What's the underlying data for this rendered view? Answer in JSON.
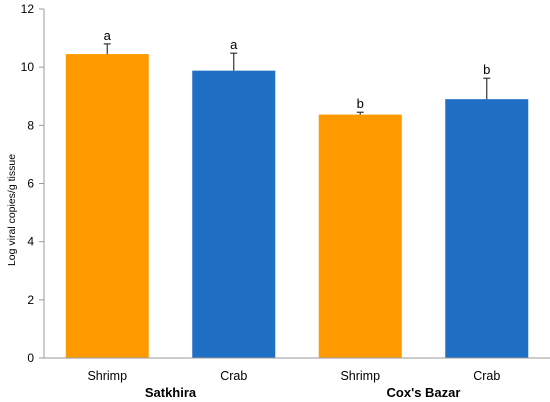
{
  "chart_data": {
    "type": "bar",
    "ylabel": "Log viral copies/g tissue",
    "ylim": [
      0,
      12
    ],
    "yticks": [
      0,
      2,
      4,
      6,
      8,
      10,
      12
    ],
    "grid": false,
    "groups": [
      "Satkhira",
      "Cox's Bazar"
    ],
    "bars": [
      {
        "category": "Shrimp",
        "group": "Satkhira",
        "value": 10.45,
        "error": 0.35,
        "label": "a",
        "color": "#FF9900"
      },
      {
        "category": "Crab",
        "group": "Satkhira",
        "value": 9.88,
        "error": 0.6,
        "label": "a",
        "color": "#1F6FC5"
      },
      {
        "category": "Shrimp",
        "group": "Cox's Bazar",
        "value": 8.37,
        "error": 0.08,
        "label": "b",
        "color": "#FF9900"
      },
      {
        "category": "Crab",
        "group": "Cox's Bazar",
        "value": 8.9,
        "error": 0.72,
        "label": "b",
        "color": "#1F6FC5"
      }
    ]
  }
}
